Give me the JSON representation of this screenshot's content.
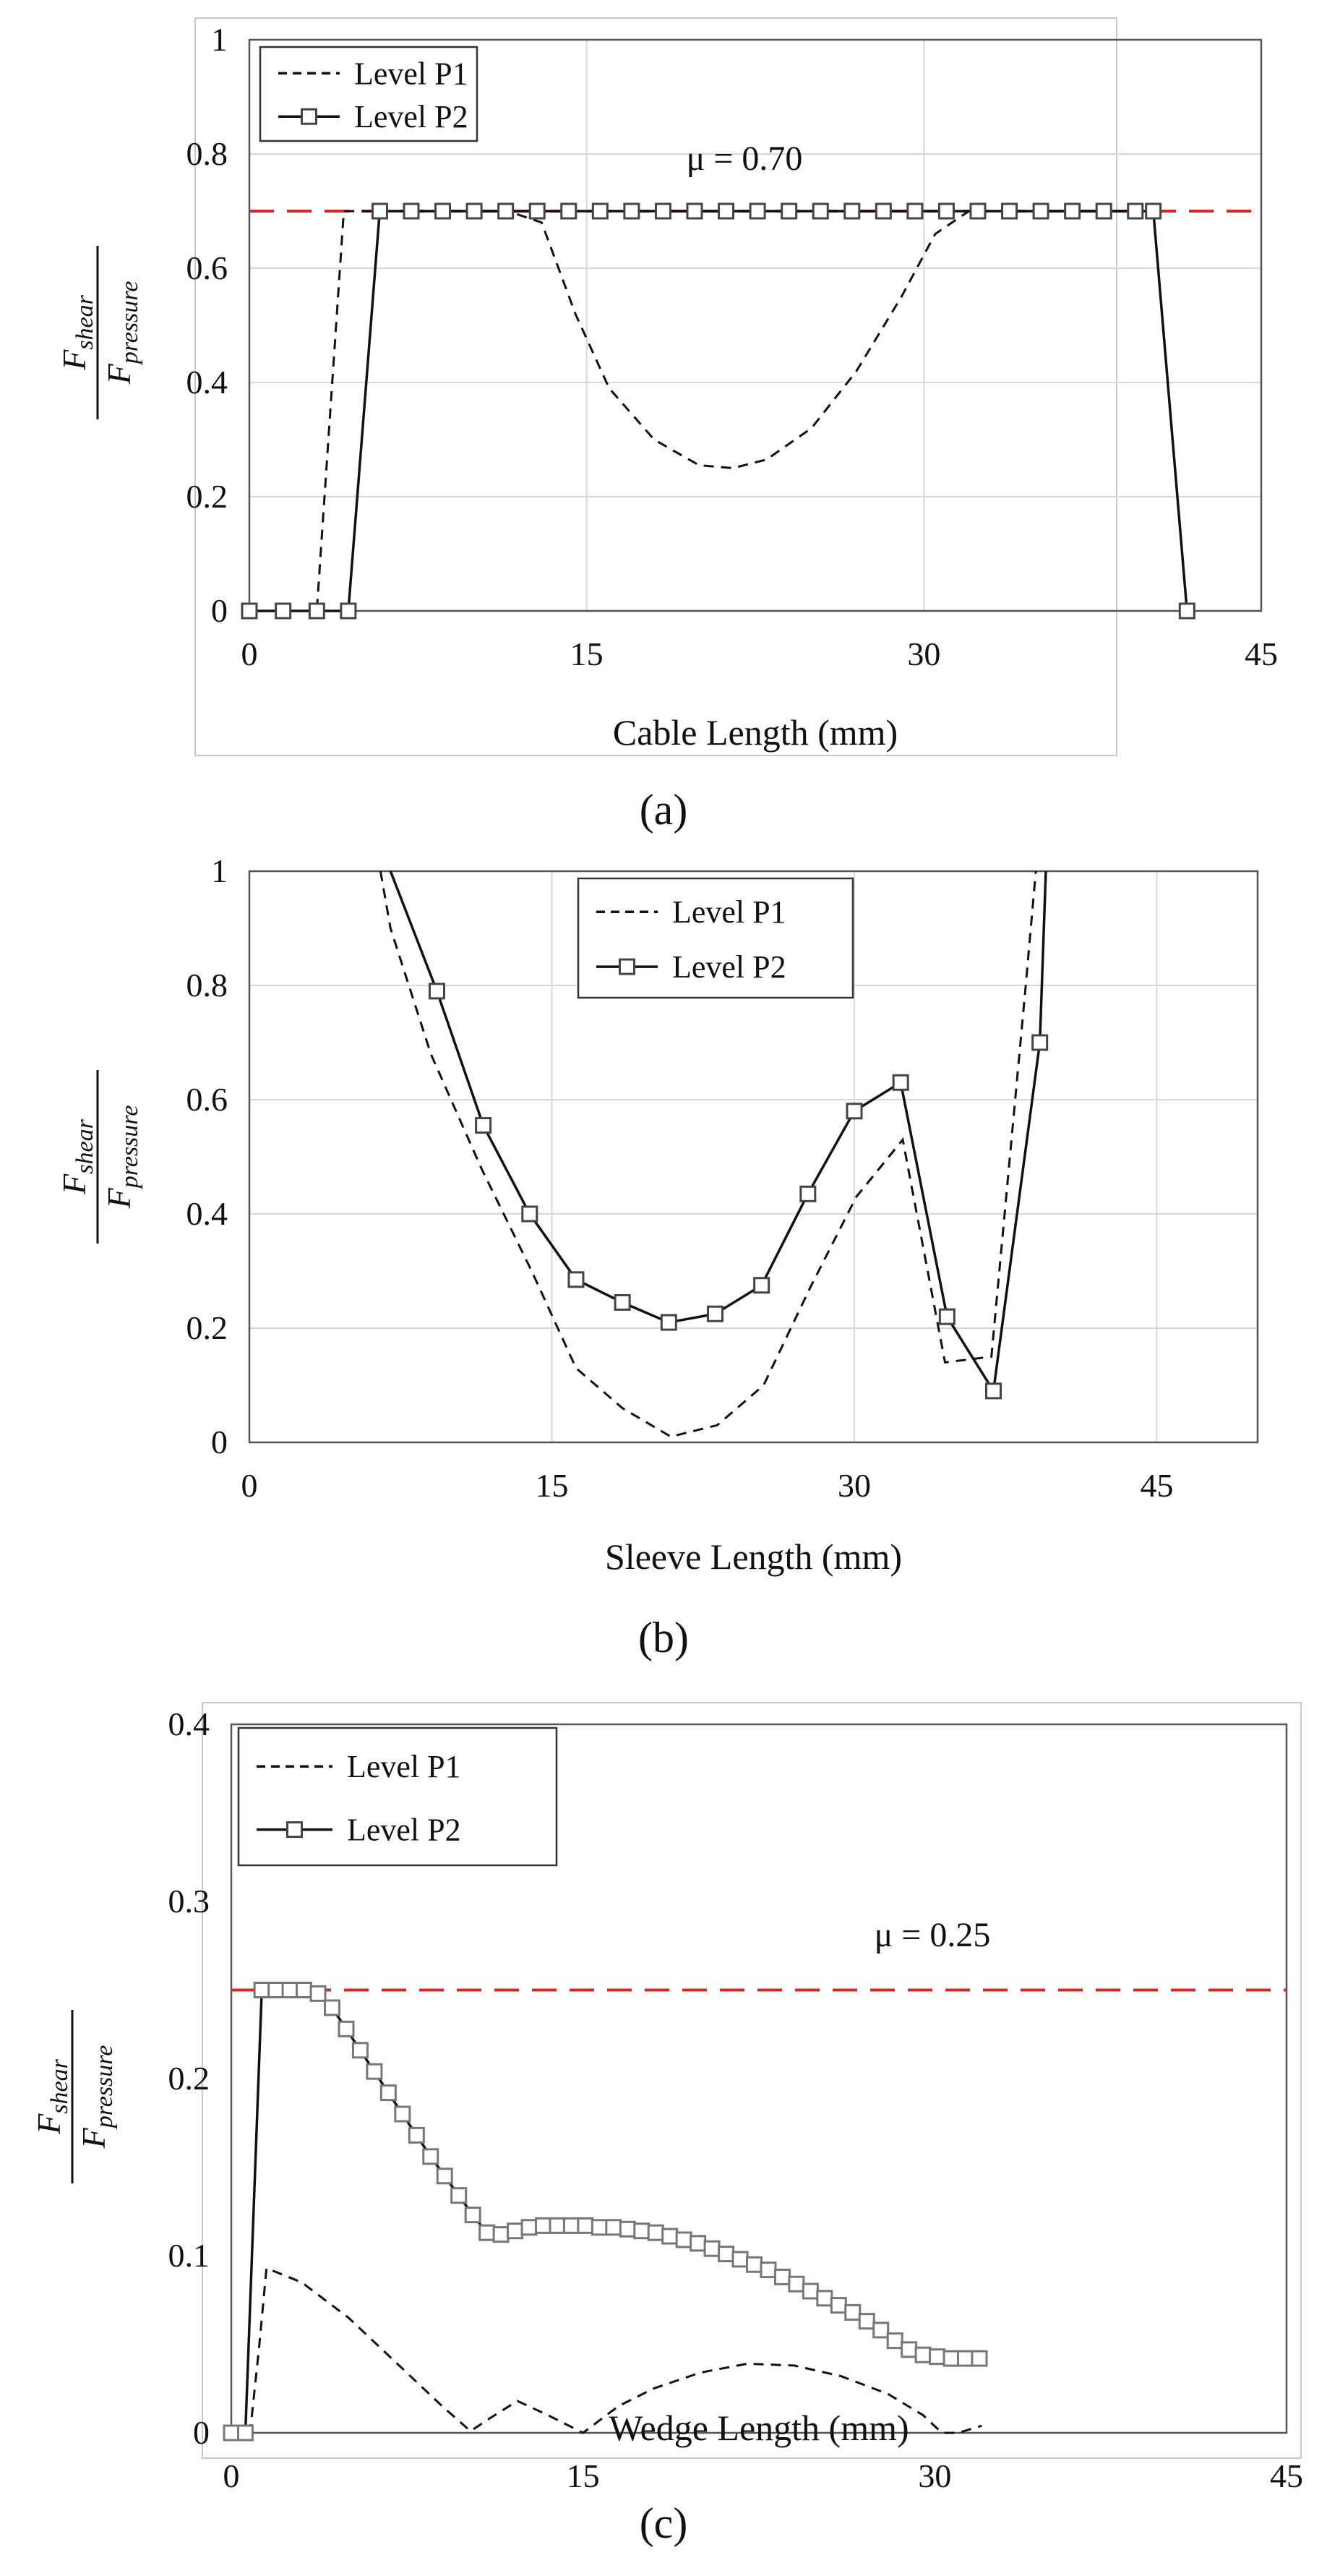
{
  "chart_data": [
    {
      "type": "line",
      "caption": "(a)",
      "xlabel": "Cable Length (mm)",
      "ylabel_num": "F",
      "ylabel_num_sub": "shear",
      "ylabel_den": "F",
      "ylabel_den_sub": "pressure",
      "xlim": [
        0,
        45
      ],
      "ylim": [
        0,
        1
      ],
      "xticks": [
        0,
        15,
        30,
        45
      ],
      "yticks": [
        0,
        0.2,
        0.4,
        0.6,
        0.8,
        1
      ],
      "ytick_labels": [
        "0",
        "0.2",
        "0.4",
        "0.6",
        "0.8",
        "1"
      ],
      "grid": true,
      "legend_position": "top-left",
      "legend": [
        "Level P1",
        "Level P2"
      ],
      "reference_line": {
        "value": 0.7,
        "label": "μ = 0.70",
        "color": "#d62728"
      },
      "series": [
        {
          "name": "Level P1",
          "style": "dashed",
          "markers": false,
          "x": [
            0,
            3.0,
            4.2,
            5.0,
            11.5,
            13.0,
            14.5,
            16.0,
            18.0,
            20.0,
            21.5,
            23.0,
            25.0,
            27.0,
            29.0,
            30.5,
            32.0,
            34.0,
            38.0,
            40.2,
            41.7
          ],
          "y": [
            0,
            0,
            0.7,
            0.7,
            0.7,
            0.68,
            0.52,
            0.39,
            0.3,
            0.255,
            0.25,
            0.265,
            0.32,
            0.42,
            0.55,
            0.66,
            0.7,
            0.7,
            0.7,
            0.7,
            0
          ]
        },
        {
          "name": "Level P2",
          "style": "solid",
          "markers": true,
          "x": [
            0,
            1.5,
            3.0,
            4.4,
            5.8,
            7.2,
            8.6,
            10.0,
            11.4,
            12.8,
            14.2,
            15.6,
            17.0,
            18.4,
            19.8,
            21.2,
            22.6,
            24.0,
            25.4,
            26.8,
            28.2,
            29.6,
            31.0,
            32.4,
            33.8,
            35.2,
            36.6,
            38.0,
            39.4,
            40.2,
            41.7
          ],
          "y": [
            0,
            0,
            0,
            0,
            0.7,
            0.7,
            0.7,
            0.7,
            0.7,
            0.7,
            0.7,
            0.7,
            0.7,
            0.7,
            0.7,
            0.7,
            0.7,
            0.7,
            0.7,
            0.7,
            0.7,
            0.7,
            0.7,
            0.7,
            0.7,
            0.7,
            0.7,
            0.7,
            0.7,
            0.7,
            0
          ]
        }
      ]
    },
    {
      "type": "line",
      "caption": "(b)",
      "xlabel": "Sleeve Length (mm)",
      "ylabel_num": "F",
      "ylabel_num_sub": "shear",
      "ylabel_den": "F",
      "ylabel_den_sub": "pressure",
      "xlim": [
        0,
        50
      ],
      "ylim": [
        0,
        1
      ],
      "xticks": [
        0,
        15,
        30,
        45
      ],
      "yticks": [
        0,
        0.2,
        0.4,
        0.6,
        0.8,
        1
      ],
      "ytick_labels": [
        "0",
        "0.2",
        "0.4",
        "0.6",
        "0.8",
        "1"
      ],
      "grid": true,
      "legend_position": "top-center",
      "legend": [
        "Level P1",
        "Level P2"
      ],
      "series": [
        {
          "name": "Level P1",
          "style": "dashed",
          "markers": false,
          "x": [
            6.5,
            7.0,
            9.0,
            11.5,
            14.0,
            16.2,
            18.5,
            20.9,
            23.2,
            25.5,
            27.8,
            30.1,
            32.4,
            34.5,
            36.8,
            38.5,
            39.0
          ],
          "y": [
            1.0,
            0.9,
            0.68,
            0.48,
            0.3,
            0.13,
            0.06,
            0.01,
            0.03,
            0.1,
            0.27,
            0.43,
            0.53,
            0.14,
            0.15,
            0.8,
            1.0
          ]
        },
        {
          "name": "Level P2",
          "style": "solid",
          "markers": true,
          "x": [
            7.0,
            9.3,
            11.6,
            13.9,
            16.2,
            18.5,
            20.8,
            23.1,
            25.4,
            27.7,
            30.0,
            32.3,
            34.6,
            36.9,
            39.2,
            39.5
          ],
          "y": [
            1.0,
            0.79,
            0.555,
            0.4,
            0.285,
            0.245,
            0.21,
            0.225,
            0.275,
            0.435,
            0.58,
            0.63,
            0.22,
            0.09,
            0.7,
            1.0
          ],
          "marker_skip_first": true,
          "marker_skip_last": true
        }
      ]
    },
    {
      "type": "line",
      "caption": "(c)",
      "xlabel": "Wedge Length (mm)",
      "ylabel_num": "F",
      "ylabel_num_sub": "shear",
      "ylabel_den": "F",
      "ylabel_den_sub": "pressure",
      "xlim": [
        0,
        45
      ],
      "ylim": [
        0,
        0.4
      ],
      "xticks": [
        0,
        15,
        30,
        45
      ],
      "yticks": [
        0,
        0.1,
        0.2,
        0.3,
        0.4
      ],
      "ytick_labels": [
        "0",
        "0.1",
        "0.2",
        "0.3",
        "0.4"
      ],
      "grid": false,
      "legend_position": "top-left",
      "legend": [
        "Level P1",
        "Level P2"
      ],
      "reference_line": {
        "value": 0.25,
        "label": "μ = 0.25",
        "color": "#d62728"
      },
      "series": [
        {
          "name": "Level P1",
          "style": "dashed",
          "markers": false,
          "x": [
            0,
            0.8,
            1.2,
            1.5,
            3.0,
            5.0,
            7.0,
            9.0,
            10.2,
            11.0,
            12.2,
            13.5,
            15.0,
            16.5,
            18.0,
            20.0,
            22.0,
            24.0,
            26.0,
            28.0,
            29.5,
            30.3,
            31.0,
            32.0
          ],
          "y": [
            0,
            0,
            0.05,
            0.093,
            0.085,
            0.065,
            0.04,
            0.015,
            0.001,
            0.008,
            0.018,
            0.01,
            0.0,
            0.015,
            0.025,
            0.034,
            0.039,
            0.038,
            0.032,
            0.022,
            0.01,
            0.0,
            0.0,
            0.004
          ]
        },
        {
          "name": "Level P2",
          "style": "solid",
          "markers": true,
          "x": [
            0,
            0.6,
            1.3,
            1.9,
            2.5,
            3.1,
            3.7,
            4.3,
            4.9,
            5.5,
            6.1,
            6.7,
            7.3,
            7.9,
            8.5,
            9.1,
            9.7,
            10.3,
            10.9,
            11.5,
            12.1,
            12.7,
            13.3,
            13.9,
            14.5,
            15.1,
            15.7,
            16.3,
            16.9,
            17.5,
            18.1,
            18.7,
            19.3,
            19.9,
            20.5,
            21.1,
            21.7,
            22.3,
            22.9,
            23.5,
            24.1,
            24.7,
            25.3,
            25.9,
            26.5,
            27.1,
            27.7,
            28.3,
            28.9,
            29.5,
            30.1,
            30.7,
            31.3,
            31.9
          ],
          "y": [
            0,
            0,
            0.25,
            0.25,
            0.25,
            0.25,
            0.248,
            0.24,
            0.228,
            0.216,
            0.204,
            0.192,
            0.18,
            0.168,
            0.156,
            0.145,
            0.134,
            0.123,
            0.113,
            0.112,
            0.114,
            0.116,
            0.117,
            0.117,
            0.117,
            0.117,
            0.116,
            0.116,
            0.115,
            0.114,
            0.113,
            0.111,
            0.109,
            0.107,
            0.104,
            0.101,
            0.098,
            0.095,
            0.092,
            0.088,
            0.084,
            0.08,
            0.076,
            0.072,
            0.068,
            0.063,
            0.058,
            0.052,
            0.047,
            0.044,
            0.043,
            0.042,
            0.042,
            0.042
          ]
        }
      ]
    }
  ]
}
